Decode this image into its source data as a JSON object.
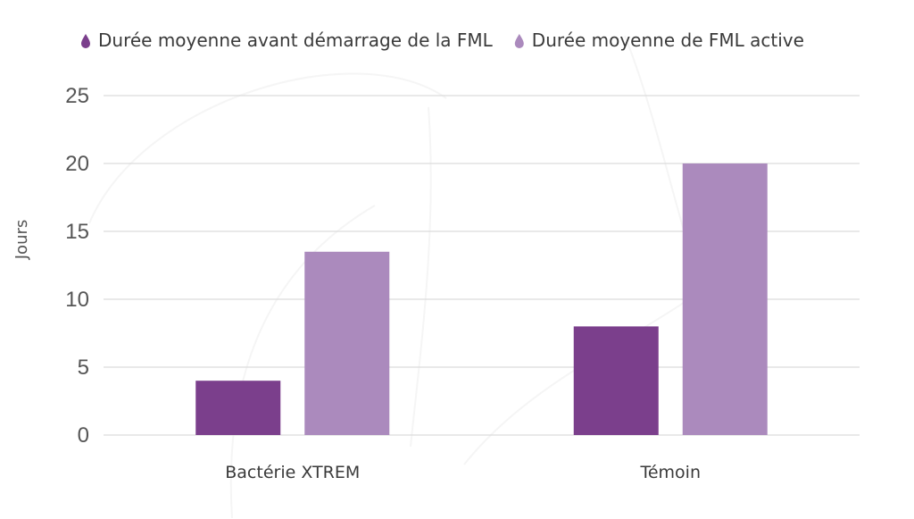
{
  "colors": {
    "series_dark": "#7b3f8c",
    "series_light": "#ab8abd",
    "grid": "#dcdcdc",
    "tick_text": "#555555",
    "label_text": "#3a3a3a"
  },
  "legend": {
    "icon": "drop-icon",
    "placement": "top"
  },
  "chart_data": {
    "type": "bar",
    "categories": [
      "Bactérie XTREM",
      "Témoin"
    ],
    "series": [
      {
        "name": "Durée moyenne avant démarrage de la FML",
        "color": "#7b3f8c",
        "values": [
          4,
          8
        ]
      },
      {
        "name": "Durée moyenne de FML active",
        "color": "#ab8abd",
        "values": [
          13.5,
          20
        ]
      }
    ],
    "ylabel": "Jours",
    "ylim": [
      0,
      25
    ],
    "yticks": [
      0,
      5,
      10,
      15,
      20,
      25
    ],
    "grid": true
  }
}
